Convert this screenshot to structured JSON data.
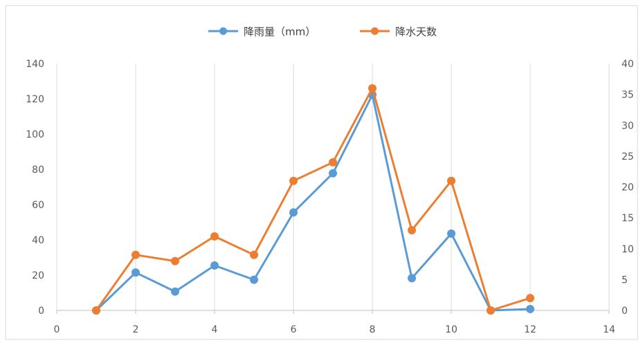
{
  "chart_data": {
    "type": "line",
    "title": "",
    "xlabel": "",
    "ylabel": "",
    "y2label": "",
    "xlim": [
      0,
      14
    ],
    "x_ticks": [
      "0",
      "2",
      "4",
      "6",
      "8",
      "10",
      "12",
      "14"
    ],
    "ylim": [
      0,
      140
    ],
    "y_ticks": [
      "0",
      "20",
      "40",
      "60",
      "80",
      "100",
      "120",
      "140"
    ],
    "y2lim": [
      0,
      40
    ],
    "y2_ticks": [
      "0",
      "5",
      "10",
      "15",
      "20",
      "25",
      "30",
      "35",
      "40"
    ],
    "grid": "vertical",
    "legend": "top-center",
    "series": [
      {
        "name": "降雨量（mm）",
        "axis": "left",
        "color": "#5B9BD5",
        "x": [
          1,
          2,
          3,
          4,
          5,
          6,
          7,
          8,
          9,
          10,
          11,
          12
        ],
        "values": [
          0,
          21.5,
          10.7,
          25.5,
          17.4,
          55.6,
          77.8,
          122.3,
          18.3,
          43.6,
          0,
          0.8
        ]
      },
      {
        "name": "降水天数",
        "axis": "right",
        "color": "#ED7D31",
        "x": [
          1,
          2,
          3,
          4,
          5,
          6,
          7,
          8,
          9,
          10,
          11,
          12
        ],
        "values": [
          0,
          9,
          8,
          12,
          9,
          21,
          24,
          36,
          13,
          21,
          0,
          2
        ]
      }
    ]
  }
}
